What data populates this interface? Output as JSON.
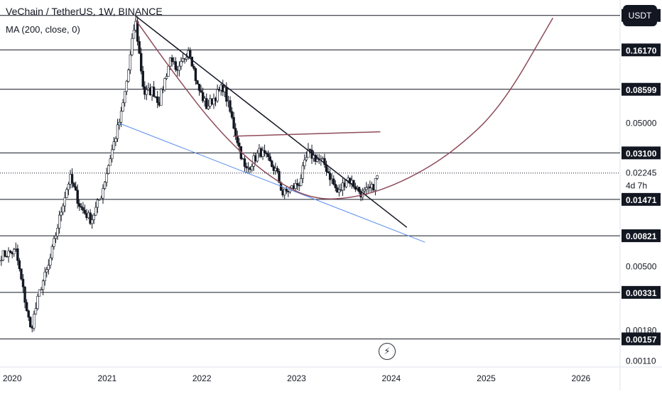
{
  "header": {
    "title": "VeChain / TetherUS, 1W, BINANCE",
    "indicator": "MA (200, close, 0)",
    "currency": "USDT"
  },
  "price_label": {
    "value": "0.02245",
    "countdown": "4d 7h"
  },
  "colors": {
    "up": "#26a69a",
    "up_fill": "#ffffff",
    "down": "#131722",
    "curve": "#8e4b5a",
    "blue_line": "#5b8def",
    "level_line": "#131722",
    "label_bg": "#131722"
  },
  "icons": {
    "logo": "bolt-icon"
  },
  "chart_data": {
    "type": "candlestick",
    "title": "VeChain / TetherUS, 1W, BINANCE",
    "scale": "log",
    "ylim": [
      0.001,
      0.36
    ],
    "xlim": [
      "2019-11-15",
      "2026-06-01"
    ],
    "x_ticks": [
      "2020",
      "2021",
      "2022",
      "2023",
      "2024",
      "2025",
      "2026"
    ],
    "y_tick_labels": [
      "0.05000",
      "0.00500",
      "0.00180",
      "0.00110"
    ],
    "horizontal_levels": [
      "0.28106",
      "0.16170",
      "0.08599",
      "0.03100",
      "0.01471",
      "0.00821",
      "0.00331",
      "0.00157"
    ],
    "last_price": "0.02245",
    "ohlc_anchors": [
      {
        "date": "2019-11-20",
        "price": 0.006
      },
      {
        "date": "2020-01-15",
        "price": 0.0064
      },
      {
        "date": "2020-03-12",
        "price": 0.0018
      },
      {
        "date": "2020-04-20",
        "price": 0.0036
      },
      {
        "date": "2020-05-20",
        "price": 0.005
      },
      {
        "date": "2020-07-15",
        "price": 0.014
      },
      {
        "date": "2020-08-10",
        "price": 0.021
      },
      {
        "date": "2020-09-20",
        "price": 0.013
      },
      {
        "date": "2020-11-01",
        "price": 0.0105
      },
      {
        "date": "2020-12-10",
        "price": 0.016
      },
      {
        "date": "2021-01-15",
        "price": 0.03
      },
      {
        "date": "2021-02-25",
        "price": 0.058
      },
      {
        "date": "2021-03-25",
        "price": 0.12
      },
      {
        "date": "2021-04-19",
        "price": 0.265
      },
      {
        "date": "2021-05-23",
        "price": 0.08
      },
      {
        "date": "2021-06-25",
        "price": 0.085
      },
      {
        "date": "2021-07-20",
        "price": 0.07
      },
      {
        "date": "2021-09-05",
        "price": 0.15
      },
      {
        "date": "2021-09-25",
        "price": 0.105
      },
      {
        "date": "2021-11-12",
        "price": 0.17
      },
      {
        "date": "2021-12-15",
        "price": 0.09
      },
      {
        "date": "2022-01-20",
        "price": 0.065
      },
      {
        "date": "2022-03-25",
        "price": 0.09
      },
      {
        "date": "2022-05-12",
        "price": 0.042
      },
      {
        "date": "2022-06-18",
        "price": 0.023
      },
      {
        "date": "2022-08-14",
        "price": 0.032
      },
      {
        "date": "2022-10-15",
        "price": 0.023
      },
      {
        "date": "2022-11-09",
        "price": 0.016
      },
      {
        "date": "2023-01-10",
        "price": 0.019
      },
      {
        "date": "2023-02-15",
        "price": 0.031
      },
      {
        "date": "2023-04-18",
        "price": 0.026
      },
      {
        "date": "2023-06-10",
        "price": 0.016
      },
      {
        "date": "2023-07-15",
        "price": 0.021
      },
      {
        "date": "2023-09-10",
        "price": 0.016
      },
      {
        "date": "2023-10-20",
        "price": 0.0175
      },
      {
        "date": "2023-11-14",
        "price": 0.0225
      }
    ],
    "annotations": {
      "descending_trendline": [
        {
          "date": "2021-04-19",
          "price": 0.28
        },
        {
          "date": "2024-03-01",
          "price": 0.0094
        }
      ],
      "lower_trendline": [
        {
          "date": "2021-02-15",
          "price": 0.05
        },
        {
          "date": "2024-05-10",
          "price": 0.0074
        }
      ],
      "short_resistance": [
        {
          "date": "2022-05-01",
          "price": 0.0405
        },
        {
          "date": "2023-11-20",
          "price": 0.0435
        }
      ],
      "rounding_curve": [
        {
          "date": "2021-04-19",
          "price": 0.265
        },
        {
          "date": "2021-09-01",
          "price": 0.12
        },
        {
          "date": "2022-03-01",
          "price": 0.045
        },
        {
          "date": "2022-09-01",
          "price": 0.022
        },
        {
          "date": "2023-03-01",
          "price": 0.0145
        },
        {
          "date": "2023-09-01",
          "price": 0.0152
        },
        {
          "date": "2024-03-01",
          "price": 0.02
        },
        {
          "date": "2024-09-01",
          "price": 0.032
        },
        {
          "date": "2025-03-01",
          "price": 0.065
        },
        {
          "date": "2025-09-15",
          "price": 0.27
        }
      ]
    }
  }
}
